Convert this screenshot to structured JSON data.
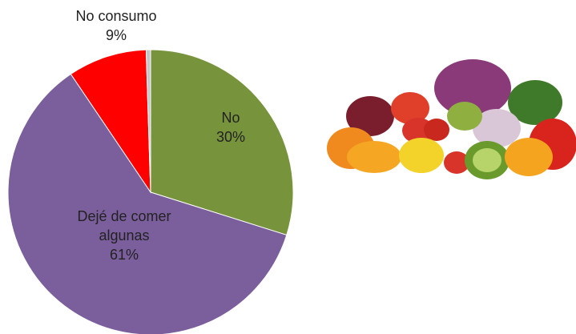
{
  "chart_data": {
    "type": "pie",
    "categories": [
      "No",
      "Dejé de comer algunas",
      "No consumo",
      null
    ],
    "values": [
      30,
      61,
      9,
      0.5
    ],
    "value_labels": [
      "30%",
      "61%",
      "9%",
      null
    ],
    "colors": [
      "#77933c",
      "#7b5e9c",
      "#ff0000",
      "#c4c4cc"
    ]
  }
}
